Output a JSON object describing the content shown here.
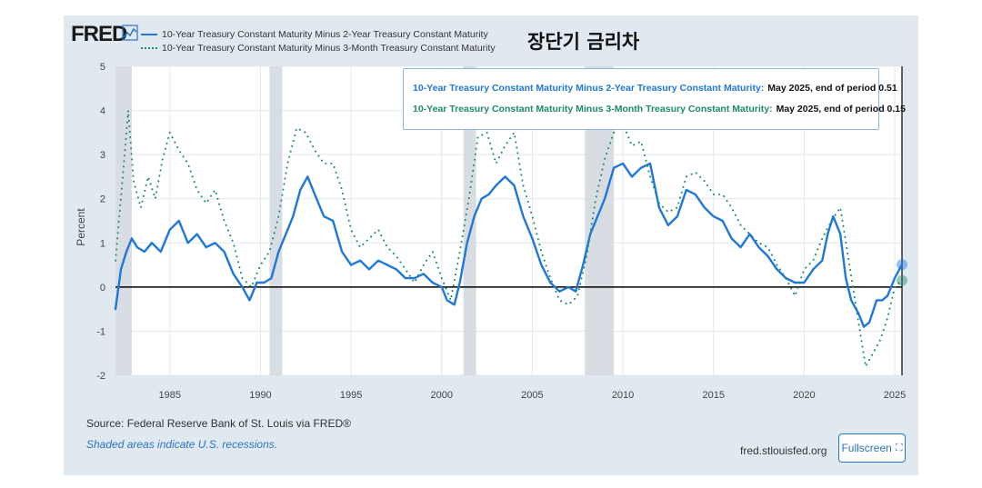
{
  "brand": {
    "logo_text": "FRED",
    "graph_icon": "line-chart-icon"
  },
  "legend": {
    "series1": "10-Year Treasury Constant Maturity Minus 2-Year Treasury Constant Maturity",
    "series2": "10-Year Treasury Constant Maturity Minus 3-Month Treasury Constant Maturity"
  },
  "overlay_title": "장단기 금리차",
  "tooltip": {
    "row1_name": "10-Year Treasury Constant Maturity Minus 2-Year Treasury Constant Maturity:",
    "row1_value": "May 2025, end of period 0.51",
    "row2_name": "10-Year Treasury Constant Maturity Minus 3-Month Treasury Constant Maturity:",
    "row2_value": "May 2025, end of period 0.15"
  },
  "footer": {
    "source": "Source: Federal Reserve Bank of St. Louis via FRED®",
    "shaded_note": "Shaded areas indicate U.S. recessions.",
    "url": "fred.stlouisfed.org",
    "fullscreen_label": "Fullscreen",
    "fullscreen_icon": "expand-icon"
  },
  "colors": {
    "series1": "#1f77d9",
    "series2": "#1d8a6b",
    "recession": "#d3d9df"
  },
  "chart_data": {
    "type": "line",
    "ylabel": "Percent",
    "xlim": [
      1982.0,
      2025.4
    ],
    "ylim": [
      -2,
      5
    ],
    "yticks": [
      "5",
      "4",
      "3",
      "2",
      "1",
      "0",
      "-1",
      "-2"
    ],
    "xticks": [
      "1985",
      "1990",
      "1995",
      "2000",
      "2005",
      "2010",
      "2015",
      "2020",
      "2025"
    ],
    "recessions": [
      [
        1981.6,
        1982.9
      ],
      [
        1990.5,
        1991.2
      ],
      [
        2001.2,
        2001.9
      ],
      [
        2007.9,
        2009.5
      ]
    ],
    "series": [
      {
        "name": "10-Year Treasury Constant Maturity Minus 2-Year Treasury Constant Maturity",
        "style": "solid",
        "x": [
          1982.0,
          1982.3,
          1982.6,
          1982.9,
          1983.2,
          1983.6,
          1984.0,
          1984.5,
          1985.0,
          1985.5,
          1986.0,
          1986.5,
          1987.0,
          1987.5,
          1988.0,
          1988.5,
          1989.0,
          1989.4,
          1989.8,
          1990.2,
          1990.6,
          1991.0,
          1991.4,
          1991.8,
          1992.2,
          1992.6,
          1993.0,
          1993.5,
          1994.0,
          1994.5,
          1995.0,
          1995.5,
          1996.0,
          1996.5,
          1997.0,
          1997.5,
          1998.0,
          1998.5,
          1999.0,
          1999.5,
          2000.0,
          2000.3,
          2000.7,
          2001.0,
          2001.4,
          2001.8,
          2002.2,
          2002.6,
          2003.0,
          2003.5,
          2004.0,
          2004.5,
          2005.0,
          2005.5,
          2006.0,
          2006.5,
          2007.0,
          2007.4,
          2007.8,
          2008.2,
          2008.6,
          2009.0,
          2009.5,
          2010.0,
          2010.5,
          2011.0,
          2011.5,
          2012.0,
          2012.5,
          2013.0,
          2013.5,
          2014.0,
          2014.5,
          2015.0,
          2015.5,
          2016.0,
          2016.5,
          2017.0,
          2017.5,
          2018.0,
          2018.5,
          2019.0,
          2019.5,
          2020.0,
          2020.5,
          2021.0,
          2021.3,
          2021.6,
          2022.0,
          2022.3,
          2022.6,
          2023.0,
          2023.3,
          2023.6,
          2024.0,
          2024.3,
          2024.6,
          2025.0,
          2025.4
        ],
        "values": [
          -0.5,
          0.4,
          0.8,
          1.1,
          0.9,
          0.8,
          1.0,
          0.8,
          1.3,
          1.5,
          1.0,
          1.2,
          0.9,
          1.0,
          0.8,
          0.3,
          0.0,
          -0.3,
          0.1,
          0.1,
          0.2,
          0.8,
          1.2,
          1.6,
          2.2,
          2.5,
          2.1,
          1.6,
          1.5,
          0.8,
          0.5,
          0.6,
          0.4,
          0.6,
          0.5,
          0.4,
          0.2,
          0.2,
          0.3,
          0.1,
          0.0,
          -0.3,
          -0.4,
          0.1,
          1.0,
          1.6,
          2.0,
          2.1,
          2.3,
          2.5,
          2.3,
          1.6,
          1.1,
          0.5,
          0.1,
          -0.1,
          0.0,
          -0.1,
          0.5,
          1.2,
          1.6,
          2.0,
          2.7,
          2.8,
          2.5,
          2.7,
          2.8,
          1.8,
          1.4,
          1.6,
          2.2,
          2.1,
          1.8,
          1.6,
          1.5,
          1.1,
          0.9,
          1.2,
          0.9,
          0.7,
          0.4,
          0.2,
          0.1,
          0.1,
          0.4,
          0.6,
          1.2,
          1.6,
          1.2,
          0.2,
          -0.3,
          -0.6,
          -0.9,
          -0.8,
          -0.3,
          -0.3,
          -0.2,
          0.2,
          0.51
        ]
      },
      {
        "name": "10-Year Treasury Constant Maturity Minus 3-Month Treasury Constant Maturity",
        "style": "dotted",
        "x": [
          1982.0,
          1982.4,
          1982.7,
          1983.0,
          1983.4,
          1983.8,
          1984.2,
          1984.6,
          1985.0,
          1985.5,
          1986.0,
          1986.5,
          1987.0,
          1987.5,
          1988.0,
          1988.5,
          1989.0,
          1989.5,
          1990.0,
          1990.5,
          1991.0,
          1991.5,
          1992.0,
          1992.5,
          1993.0,
          1993.5,
          1994.0,
          1994.5,
          1995.0,
          1995.5,
          1996.0,
          1996.5,
          1997.0,
          1997.5,
          1998.0,
          1998.5,
          1999.0,
          1999.5,
          2000.0,
          2000.5,
          2001.0,
          2001.5,
          2002.0,
          2002.5,
          2003.0,
          2003.5,
          2004.0,
          2004.5,
          2005.0,
          2005.5,
          2006.0,
          2006.5,
          2007.0,
          2007.5,
          2008.0,
          2008.5,
          2009.0,
          2009.5,
          2010.0,
          2010.5,
          2011.0,
          2011.5,
          2012.0,
          2012.5,
          2013.0,
          2013.5,
          2014.0,
          2014.5,
          2015.0,
          2015.5,
          2016.0,
          2016.5,
          2017.0,
          2017.5,
          2018.0,
          2018.5,
          2019.0,
          2019.5,
          2020.0,
          2020.5,
          2021.0,
          2021.5,
          2022.0,
          2022.5,
          2023.0,
          2023.4,
          2023.8,
          2024.2,
          2024.6,
          2025.0,
          2025.4
        ],
        "values": [
          0.6,
          2.5,
          4.0,
          2.4,
          1.8,
          2.5,
          2.0,
          2.9,
          3.5,
          3.1,
          2.8,
          2.2,
          1.9,
          2.2,
          1.5,
          1.0,
          0.2,
          0.0,
          0.5,
          0.8,
          1.6,
          2.8,
          3.6,
          3.5,
          3.1,
          2.8,
          2.8,
          2.2,
          1.3,
          0.9,
          1.1,
          1.3,
          0.9,
          0.7,
          0.4,
          0.1,
          0.5,
          0.8,
          0.2,
          -0.3,
          0.8,
          2.0,
          3.4,
          3.5,
          2.8,
          3.2,
          3.5,
          2.3,
          1.6,
          0.8,
          0.2,
          -0.3,
          -0.4,
          -0.2,
          0.7,
          2.0,
          2.9,
          3.5,
          3.7,
          3.2,
          3.3,
          2.5,
          1.9,
          1.7,
          1.8,
          2.5,
          2.6,
          2.4,
          2.1,
          2.1,
          1.8,
          1.4,
          1.2,
          1.0,
          0.9,
          0.5,
          0.2,
          -0.2,
          0.4,
          0.6,
          1.1,
          1.5,
          1.8,
          0.5,
          -0.8,
          -1.8,
          -1.5,
          -1.2,
          -0.7,
          0.0,
          0.15
        ]
      }
    ]
  }
}
